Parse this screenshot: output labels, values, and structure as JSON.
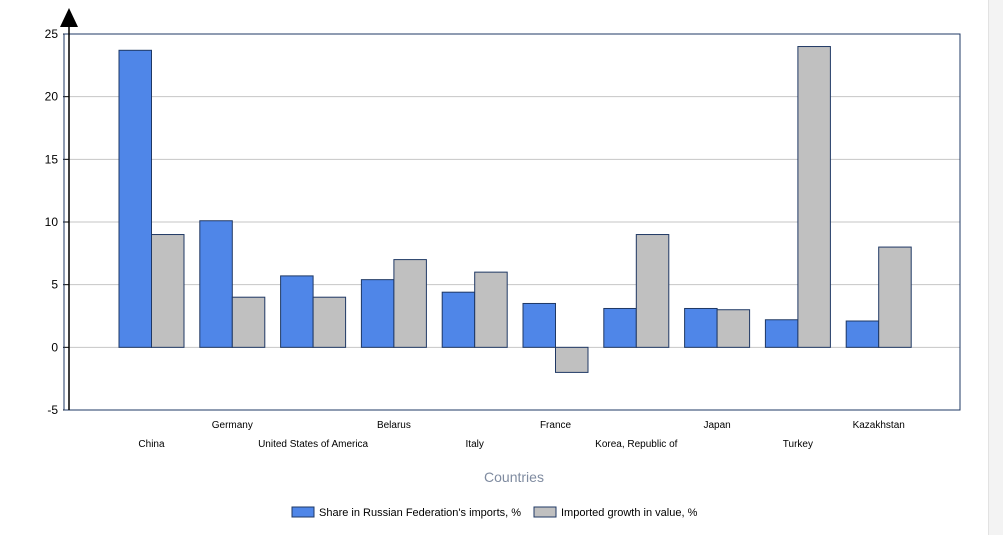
{
  "chart_data": {
    "type": "bar",
    "title": "",
    "xlabel": "Countries",
    "ylabel": "",
    "ylim": [
      -5,
      25
    ],
    "yticks": [
      -5,
      0,
      5,
      10,
      15,
      20,
      25
    ],
    "grid": true,
    "legend_position": "bottom",
    "categories": [
      "China",
      "Germany",
      "United States of America",
      "Belarus",
      "Italy",
      "France",
      "Korea, Republic of",
      "Japan",
      "Turkey",
      "Kazakhstan"
    ],
    "series": [
      {
        "name": "Share in Russian Federation's imports, %",
        "color": "#4f86e8",
        "values": [
          23.7,
          10.1,
          5.7,
          5.4,
          4.4,
          3.5,
          3.1,
          3.1,
          2.2,
          2.1
        ]
      },
      {
        "name": "Imported growth in value, %",
        "color": "#c0c0c0",
        "values": [
          9,
          4,
          4,
          7,
          6,
          -2,
          9,
          3,
          24,
          8
        ]
      }
    ]
  }
}
